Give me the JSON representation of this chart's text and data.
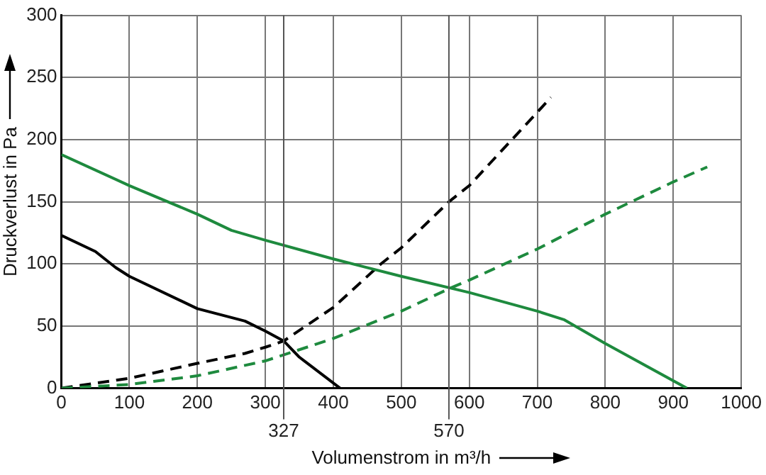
{
  "chart_data": {
    "type": "line",
    "xlabel": "Volumenstrom in m³/h",
    "ylabel": "Druckverlust in Pa",
    "xlim": [
      0,
      1000
    ],
    "xticks": [
      0,
      100,
      200,
      300,
      400,
      500,
      600,
      700,
      800,
      900,
      1000
    ],
    "ylim": [
      0,
      300
    ],
    "yticks": [
      0,
      50,
      100,
      150,
      200,
      250,
      300
    ],
    "grid": true,
    "legend": false,
    "marker": "none",
    "series": [
      {
        "color": "#1e8a3e",
        "line_style": "dashed",
        "x": [
          0,
          100,
          200,
          300,
          400,
          500,
          570,
          600,
          700,
          800,
          900,
          950
        ],
        "values": [
          0,
          3,
          10,
          22,
          40,
          62,
          80,
          87,
          112,
          140,
          166,
          178
        ]
      },
      {
        "color": "#1e8a3e",
        "line_style": "solid",
        "x": [
          0,
          100,
          200,
          250,
          300,
          400,
          500,
          600,
          700,
          740,
          800,
          920
        ],
        "values": [
          188,
          163,
          140,
          127,
          119,
          104,
          90,
          77,
          62,
          55,
          36,
          0
        ]
      },
      {
        "color": "#000000",
        "line_style": "dashed",
        "x": [
          0,
          100,
          200,
          270,
          300,
          327,
          400,
          470,
          500,
          570,
          600,
          700,
          720
        ],
        "values": [
          0,
          8,
          20,
          28,
          33,
          38,
          65,
          100,
          113,
          150,
          163,
          222,
          234
        ]
      },
      {
        "color": "#000000",
        "line_style": "solid",
        "x": [
          0,
          50,
          80,
          100,
          200,
          270,
          300,
          327,
          350,
          410
        ],
        "values": [
          123,
          110,
          97,
          90,
          64,
          54,
          46,
          38,
          25,
          0
        ]
      }
    ],
    "ref_lines": [
      {
        "axis": "x",
        "value": 327,
        "label": "327",
        "color": "#555555"
      },
      {
        "axis": "x",
        "value": 570,
        "label": "570",
        "color": "#555555"
      }
    ]
  }
}
